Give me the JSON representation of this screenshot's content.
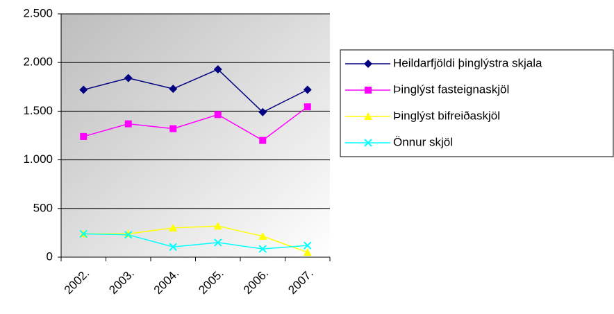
{
  "chart_data": {
    "type": "line",
    "categories": [
      "2002.",
      "2003.",
      "2004.",
      "2005.",
      "2006.",
      "2007."
    ],
    "series": [
      {
        "name": "Heildarfjöldi þinglýstra skjala",
        "color": "#000080",
        "marker": "diamond",
        "values": [
          1720,
          1840,
          1730,
          1930,
          1490,
          1720
        ]
      },
      {
        "name": "Þinglýst fasteignaskjöl",
        "color": "#ff00ff",
        "marker": "square",
        "values": [
          1240,
          1370,
          1320,
          1465,
          1200,
          1545
        ]
      },
      {
        "name": "Þinglýst bifreiðaskjöl",
        "color": "#ffff00",
        "marker": "triangle",
        "values": [
          240,
          240,
          300,
          320,
          215,
          50
        ]
      },
      {
        "name": "Önnur skjöl",
        "color": "#00ffff",
        "marker": "x",
        "values": [
          240,
          230,
          105,
          150,
          85,
          120
        ]
      }
    ],
    "ylim": [
      0,
      2500
    ],
    "yticks": [
      0,
      500,
      {
        "value": 1000,
        "label": "1.000"
      },
      {
        "value": 1500,
        "label": "1.500"
      },
      {
        "value": 2000,
        "label": "2.000"
      },
      {
        "value": 2500,
        "label": "2.500"
      }
    ],
    "grid": true,
    "legend": "right"
  }
}
